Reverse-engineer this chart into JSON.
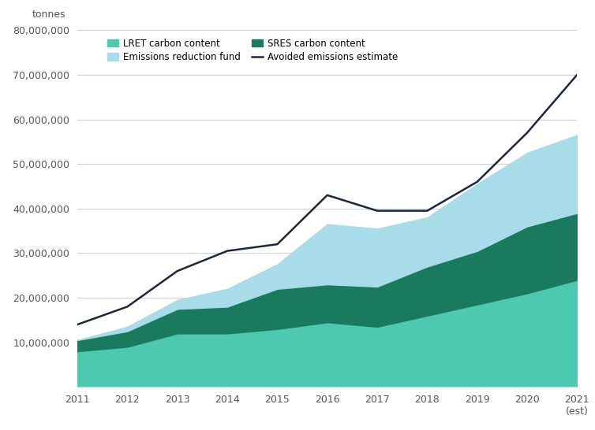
{
  "years": [
    2011,
    2012,
    2013,
    2014,
    2015,
    2016,
    2017,
    2018,
    2019,
    2020,
    2021
  ],
  "lret_carbon": [
    8000000,
    9000000,
    12000000,
    12000000,
    13000000,
    14500000,
    13500000,
    16000000,
    18500000,
    21000000,
    24000000
  ],
  "sres_carbon": [
    2500000,
    3500000,
    5500000,
    6000000,
    9000000,
    8500000,
    9000000,
    11000000,
    12000000,
    15000000,
    15000000
  ],
  "emissions_fund": [
    0,
    1000000,
    2000000,
    4000000,
    5500000,
    13500000,
    13000000,
    11000000,
    15000000,
    16500000,
    17500000
  ],
  "avoided_emissions": [
    14000000,
    18000000,
    26000000,
    30500000,
    32000000,
    43000000,
    39500000,
    39500000,
    46000000,
    57000000,
    70000000
  ],
  "ylim": [
    0,
    80000000
  ],
  "yticks": [
    10000000,
    20000000,
    30000000,
    40000000,
    50000000,
    60000000,
    70000000,
    80000000
  ],
  "colors": {
    "lret": "#4dc9b0",
    "sres": "#1a7a5e",
    "fund": "#a8dce8",
    "line": "#1a2740"
  },
  "legend_labels": {
    "lret": "LRET carbon content",
    "sres": "SRES carbon content",
    "fund": "Emissions reduction fund",
    "line": "Avoided emissions estimate"
  },
  "ylabel_text": "tonnes",
  "background_color": "#ffffff",
  "grid_color": "#d0d0d0"
}
